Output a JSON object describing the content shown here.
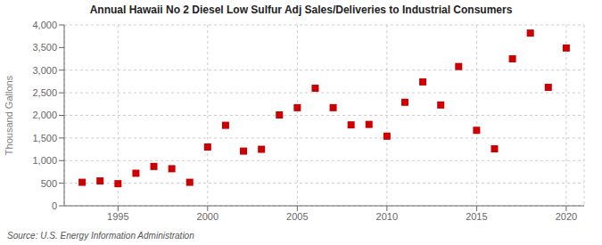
{
  "chart_data": {
    "type": "scatter",
    "title": "Annual Hawaii No 2 Diesel Low Sulfur Adj Sales/Deliveries to Industrial Consumers",
    "ylabel": "Thousand Gallons",
    "annotations": [
      "Source: U.S. Energy Information Administration"
    ],
    "x": [
      1993,
      1994,
      1995,
      1996,
      1997,
      1998,
      1999,
      2000,
      2001,
      2002,
      2003,
      2004,
      2005,
      2006,
      2007,
      2008,
      2009,
      2010,
      2011,
      2012,
      2013,
      2014,
      2015,
      2016,
      2017,
      2018,
      2019,
      2020
    ],
    "values": [
      520,
      550,
      490,
      720,
      870,
      820,
      520,
      1300,
      1780,
      1210,
      1250,
      2010,
      2170,
      2600,
      2170,
      1790,
      1800,
      1540,
      2290,
      2740,
      2230,
      3080,
      1670,
      1260,
      3250,
      3820,
      2620,
      3490
    ],
    "color": "#cc0000",
    "marker": "square",
    "grid": true,
    "xlim": [
      1992,
      2021
    ],
    "xticks": [
      1995,
      2000,
      2005,
      2010,
      2015,
      2020
    ],
    "ylim": [
      0,
      4000
    ],
    "yticks": [
      0,
      500,
      {
        "value": 1000,
        "label": "1,000"
      },
      {
        "value": 1500,
        "label": "1,500"
      },
      {
        "value": 2000,
        "label": "2,000"
      },
      {
        "value": 2500,
        "label": "2,500"
      },
      {
        "value": 3000,
        "label": "3,000"
      },
      {
        "value": 3500,
        "label": "3,500"
      },
      {
        "value": 4000,
        "label": "4,000"
      }
    ]
  }
}
